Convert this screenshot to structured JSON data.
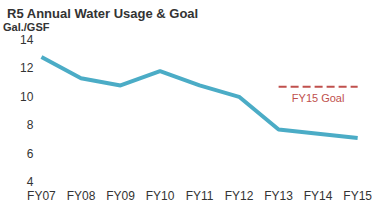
{
  "chart_data": {
    "type": "line",
    "title": "R5 Annual Water Usage & Goal",
    "y_label": "Gal./GSF",
    "categories": [
      "FY07",
      "FY08",
      "FY09",
      "FY10",
      "FY11",
      "FY12",
      "FY13",
      "FY14",
      "FY15"
    ],
    "series": [
      {
        "color": "#4bacc6",
        "line_style": "solid",
        "values": [
          12.8,
          11.3,
          10.8,
          11.8,
          10.8,
          10.0,
          7.7,
          7.4,
          7.1
        ]
      },
      {
        "name": "FY15 Goal",
        "color": "#c0504d",
        "line_style": "dashed",
        "values": [
          null,
          null,
          null,
          null,
          null,
          null,
          10.7,
          10.7,
          10.7
        ]
      }
    ],
    "ylim": [
      4,
      14
    ],
    "yticks": [
      4,
      6,
      8,
      10,
      12,
      14
    ],
    "grid": false
  }
}
